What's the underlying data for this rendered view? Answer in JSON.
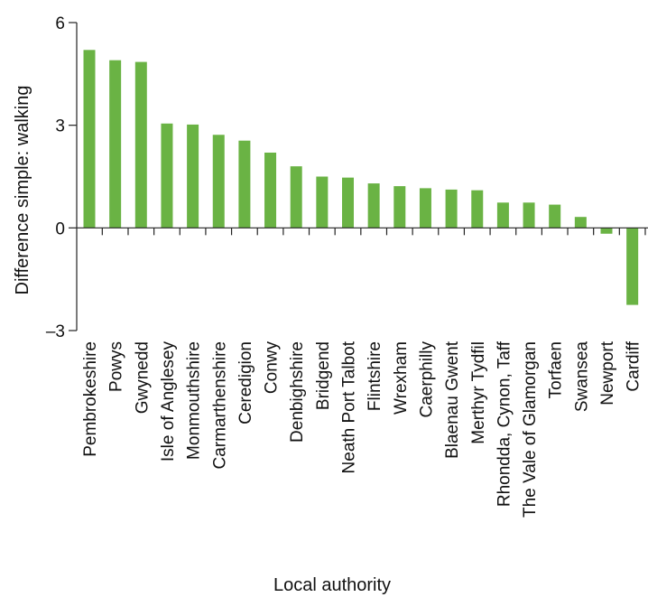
{
  "chart_data": {
    "type": "bar",
    "categories": [
      "Pembrokeshire",
      "Powys",
      "Gwynedd",
      "Isle of Anglesey",
      "Monmouthshire",
      "Carmarthenshire",
      "Ceredigion",
      "Conwy",
      "Denbighshire",
      "Bridgend",
      "Neath Port Talbot",
      "Flintshire",
      "Wrexham",
      "Caerphilly",
      "Blaenau Gwent",
      "Merthyr Tydfil",
      "Rhondda, Cynon, Taff",
      "The Vale of Glamorgan",
      "Torfaen",
      "Swansea",
      "Newport",
      "Cardiff"
    ],
    "values": [
      5.2,
      4.9,
      4.85,
      3.05,
      3.02,
      2.72,
      2.55,
      2.2,
      1.8,
      1.5,
      1.47,
      1.3,
      1.22,
      1.16,
      1.12,
      1.1,
      0.74,
      0.74,
      0.68,
      0.32,
      -0.17,
      -2.25
    ],
    "title": "",
    "xlabel": "Local authority",
    "ylabel": "Difference simple: walking",
    "ylim": [
      -3,
      6
    ],
    "yticks": [
      6,
      3,
      0,
      -3
    ],
    "ytick_labels": [
      "6",
      "3",
      "0",
      "–3"
    ],
    "bar_color": "#6ab344",
    "grid": false,
    "legend": "none"
  }
}
